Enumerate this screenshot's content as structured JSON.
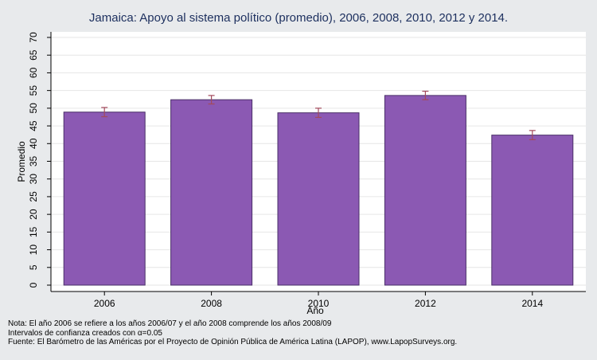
{
  "chart_data": {
    "type": "bar",
    "title": "Jamaica: Apoyo al sistema político (promedio), 2006, 2008, 2010, 2012 y 2014.",
    "xlabel": "Año",
    "ylabel": "Promedio",
    "categories": [
      "2006",
      "2008",
      "2010",
      "2012",
      "2014"
    ],
    "values": [
      48.9,
      52.4,
      48.7,
      53.6,
      42.4
    ],
    "ci_low": [
      47.6,
      51.2,
      47.4,
      52.4,
      41.1
    ],
    "ci_high": [
      50.2,
      53.6,
      50.0,
      54.8,
      43.7
    ],
    "ylim": [
      0,
      70
    ],
    "yticks": [
      "0",
      "5",
      "10",
      "15",
      "20",
      "25",
      "30",
      "35",
      "40",
      "45",
      "50",
      "55",
      "60",
      "65",
      "70"
    ],
    "grid": true,
    "colors": {
      "bar": "#8b59b3",
      "bar_edge": "#4a2f68",
      "error": "#a34a5c",
      "grid": "#e6e6e6",
      "plot_bg": "#ffffff"
    }
  },
  "notes": [
    "Nota: El año 2006 se refiere a los años 2006/07 y el año 2008 comprende los años 2008/09",
    "Intervalos de confianza creados con α=0.05",
    "Fuente: El Barómetro de las Américas por el Proyecto de Opinión Pública de América Latina (LAPOP), www.LapopSurveys.org."
  ]
}
